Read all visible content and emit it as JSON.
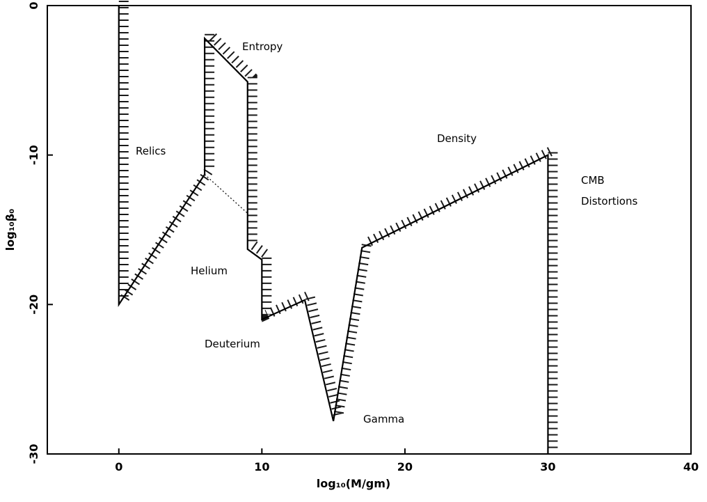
{
  "chart_data": {
    "type": "line",
    "x_label": "log₁₀(M/gm)",
    "y_label": "log₁₀β₀",
    "xlim": [
      -5,
      40
    ],
    "ylim": [
      -30,
      0
    ],
    "xticks": [
      0,
      10,
      20,
      30,
      40
    ],
    "yticks": [
      0,
      -10,
      -20,
      -30
    ],
    "series": [
      {
        "color": "#000000",
        "x": [
          0,
          0,
          6,
          6,
          9,
          9,
          10,
          10,
          13,
          15,
          17,
          30,
          30
        ],
        "values": [
          0,
          -20,
          -11.3,
          -2.2,
          -5.1,
          -16.3,
          -17,
          -21,
          -19.7,
          -27.8,
          -16.2,
          -10,
          -30
        ]
      },
      {
        "color": "#000000",
        "dotted": true,
        "x": [
          6,
          9
        ],
        "values": [
          -11.3,
          -13.9
        ]
      }
    ],
    "annotations": [
      "Relics",
      "Entropy",
      "Density",
      "CMB",
      "Distortions",
      "Helium",
      "Deuterium",
      "Gamma"
    ]
  }
}
